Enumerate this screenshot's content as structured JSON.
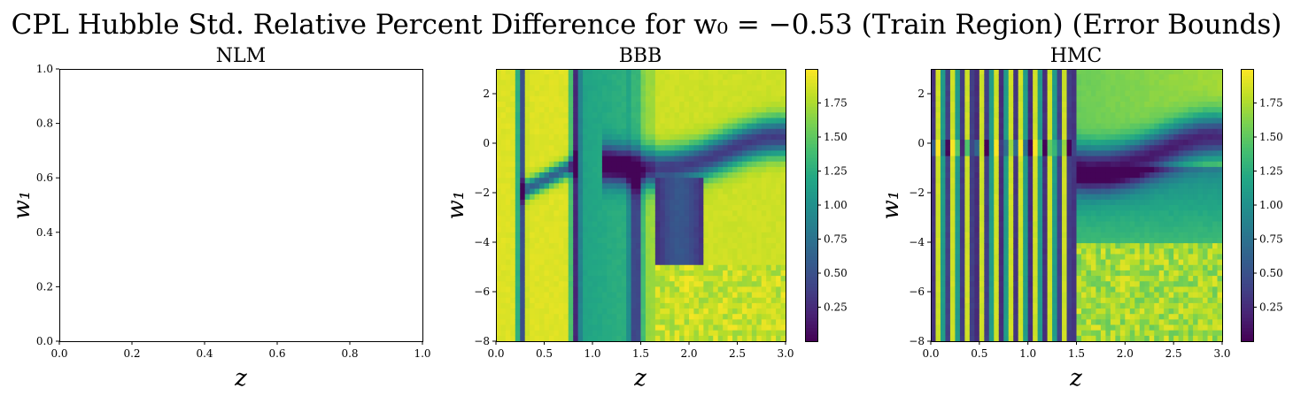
{
  "figure": {
    "suptitle": "CPL Hubble Std. Relative Percent Difference for w₀ = −0.53 (Train Region) (Error Bounds)"
  },
  "chart_data": [
    {
      "type": "heatmap",
      "title": "NLM",
      "xlabel": "z",
      "ylabel": "w₁",
      "empty": true,
      "xlim": [
        0.0,
        1.0
      ],
      "ylim": [
        0.0,
        1.0
      ],
      "xticks": [
        "0.0",
        "0.2",
        "0.4",
        "0.6",
        "0.8",
        "1.0"
      ],
      "yticks": [
        "0.0",
        "0.2",
        "0.4",
        "0.6",
        "0.8",
        "1.0"
      ],
      "colorbar": null
    },
    {
      "type": "heatmap",
      "title": "BBB",
      "xlabel": "z",
      "ylabel": "w₁",
      "xlim": [
        0.0,
        3.0
      ],
      "ylim": [
        -8,
        3
      ],
      "xticks": [
        "0.0",
        "0.5",
        "1.0",
        "1.5",
        "2.0",
        "2.5",
        "3.0"
      ],
      "yticks": [
        "−8",
        "−6",
        "−4",
        "−2",
        "0",
        "2"
      ],
      "colormap": "viridis",
      "colorbar": {
        "range": [
          0.0,
          2.0
        ],
        "ticks": [
          "0.25",
          "0.50",
          "0.75",
          "1.00",
          "1.25",
          "1.50",
          "1.75"
        ]
      },
      "description": "Mostly yellow (~1.8–2.0) field with dark vertical bands at z ≈ 0.25, 0.8, 1.45 and curved dark ridges near w₁ ≈ −1 for z > 1.6; green band 0.9–1.4; arch feature around z ≈ 1.9."
    },
    {
      "type": "heatmap",
      "title": "HMC",
      "xlabel": "z",
      "ylabel": "w₁",
      "xlim": [
        0.0,
        3.0
      ],
      "ylim": [
        -8,
        3
      ],
      "xticks": [
        "0.0",
        "0.5",
        "1.0",
        "1.5",
        "2.0",
        "2.5",
        "3.0"
      ],
      "yticks": [
        "−8",
        "−6",
        "−4",
        "−2",
        "0",
        "2"
      ],
      "colormap": "viridis",
      "colorbar": {
        "range": [
          0.0,
          2.0
        ],
        "ticks": [
          "0.25",
          "0.50",
          "0.75",
          "1.00",
          "1.25",
          "1.50",
          "1.75"
        ]
      },
      "description": "Alternating vertical stripes for z < 1.5; smoother field for z > 1.5 with a dark valley near w₁ ≈ −1 and a bright yellow-green upper right region."
    }
  ]
}
